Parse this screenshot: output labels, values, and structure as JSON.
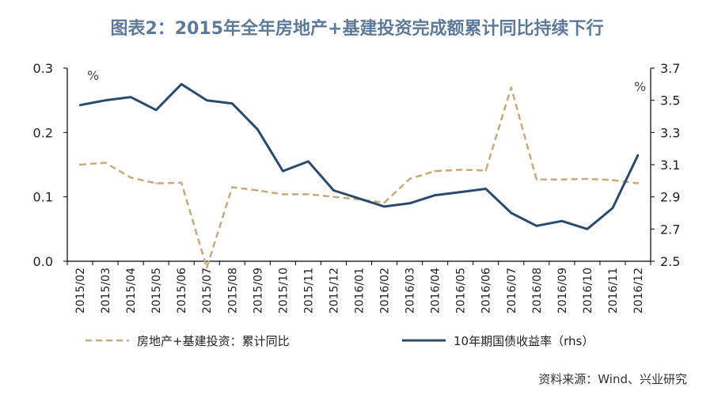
{
  "title": "图表2：2015年全年房地产+基建投资完成额累计同比持续下行",
  "source": "资料来源：Wind、兴业研究",
  "chart_data": {
    "type": "line",
    "title": "图表2：2015年全年房地产+基建投资完成额累计同比持续下行",
    "categories": [
      "2015/02",
      "2015/03",
      "2015/04",
      "2015/05",
      "2015/06",
      "2015/07",
      "2015/08",
      "2015/09",
      "2015/10",
      "2015/11",
      "2015/12",
      "2016/01",
      "2016/02",
      "2016/03",
      "2016/04",
      "2016/05",
      "2016/06",
      "2016/07",
      "2016/08",
      "2016/09",
      "2016/10",
      "2016/11",
      "2016/12"
    ],
    "y_left": {
      "unit": "%",
      "ylim": [
        0.0,
        0.3
      ],
      "ticks": [
        "0.0",
        "0.1",
        "0.2",
        "0.3"
      ]
    },
    "y_right": {
      "unit": "%",
      "ylim": [
        2.5,
        3.7
      ],
      "ticks": [
        "2.5",
        "2.7",
        "2.9",
        "3.1",
        "3.3",
        "3.5",
        "3.7"
      ]
    },
    "grid": false,
    "legend_position": "bottom",
    "series": [
      {
        "name": "房地产+基建投资：累计同比",
        "axis": "left",
        "style": "dashed",
        "color": "#c8a97a",
        "values": [
          0.15,
          0.153,
          0.13,
          0.121,
          0.122,
          -0.01,
          0.115,
          0.11,
          0.104,
          0.104,
          0.1,
          0.096,
          0.091,
          0.128,
          0.14,
          0.142,
          0.141,
          0.27,
          0.127,
          0.127,
          0.128,
          0.126,
          0.121
        ]
      },
      {
        "name": "10年期国债收益率（rhs）",
        "axis": "right",
        "style": "solid",
        "color": "#2e4a6b",
        "values": [
          3.47,
          3.5,
          3.52,
          3.44,
          3.6,
          3.5,
          3.48,
          3.32,
          3.06,
          3.12,
          2.94,
          2.89,
          2.84,
          2.86,
          2.91,
          2.93,
          2.95,
          2.8,
          2.72,
          2.75,
          2.7,
          2.83,
          3.16
        ]
      }
    ]
  }
}
